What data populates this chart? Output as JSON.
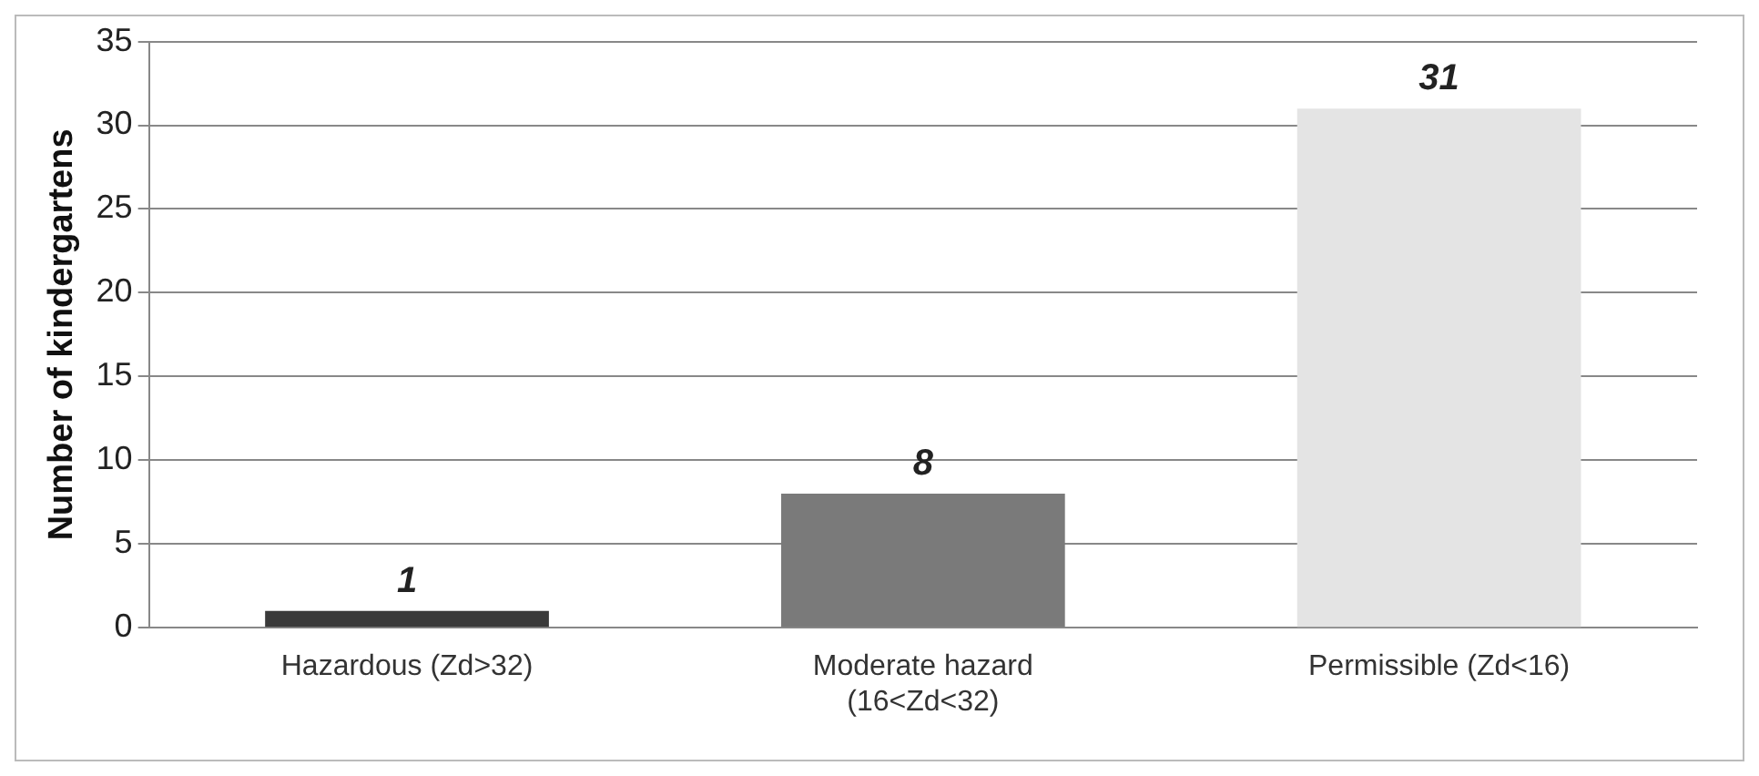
{
  "chart_data": {
    "type": "bar",
    "ylabel": "Number of kindergartens",
    "categories": [
      "Hazardous (Zd>32)",
      "Moderate hazard\n(16<Zd<32)",
      "Permissible (Zd<16)"
    ],
    "values": [
      1,
      8,
      31
    ],
    "colors": [
      "#3a3a3a",
      "#7a7a7a",
      "#e4e4e4"
    ],
    "ylim": [
      0,
      35
    ],
    "yticks": [
      0,
      5,
      10,
      15,
      20,
      25,
      30,
      35
    ],
    "grid": "y",
    "data_labels": true,
    "legend": false
  }
}
